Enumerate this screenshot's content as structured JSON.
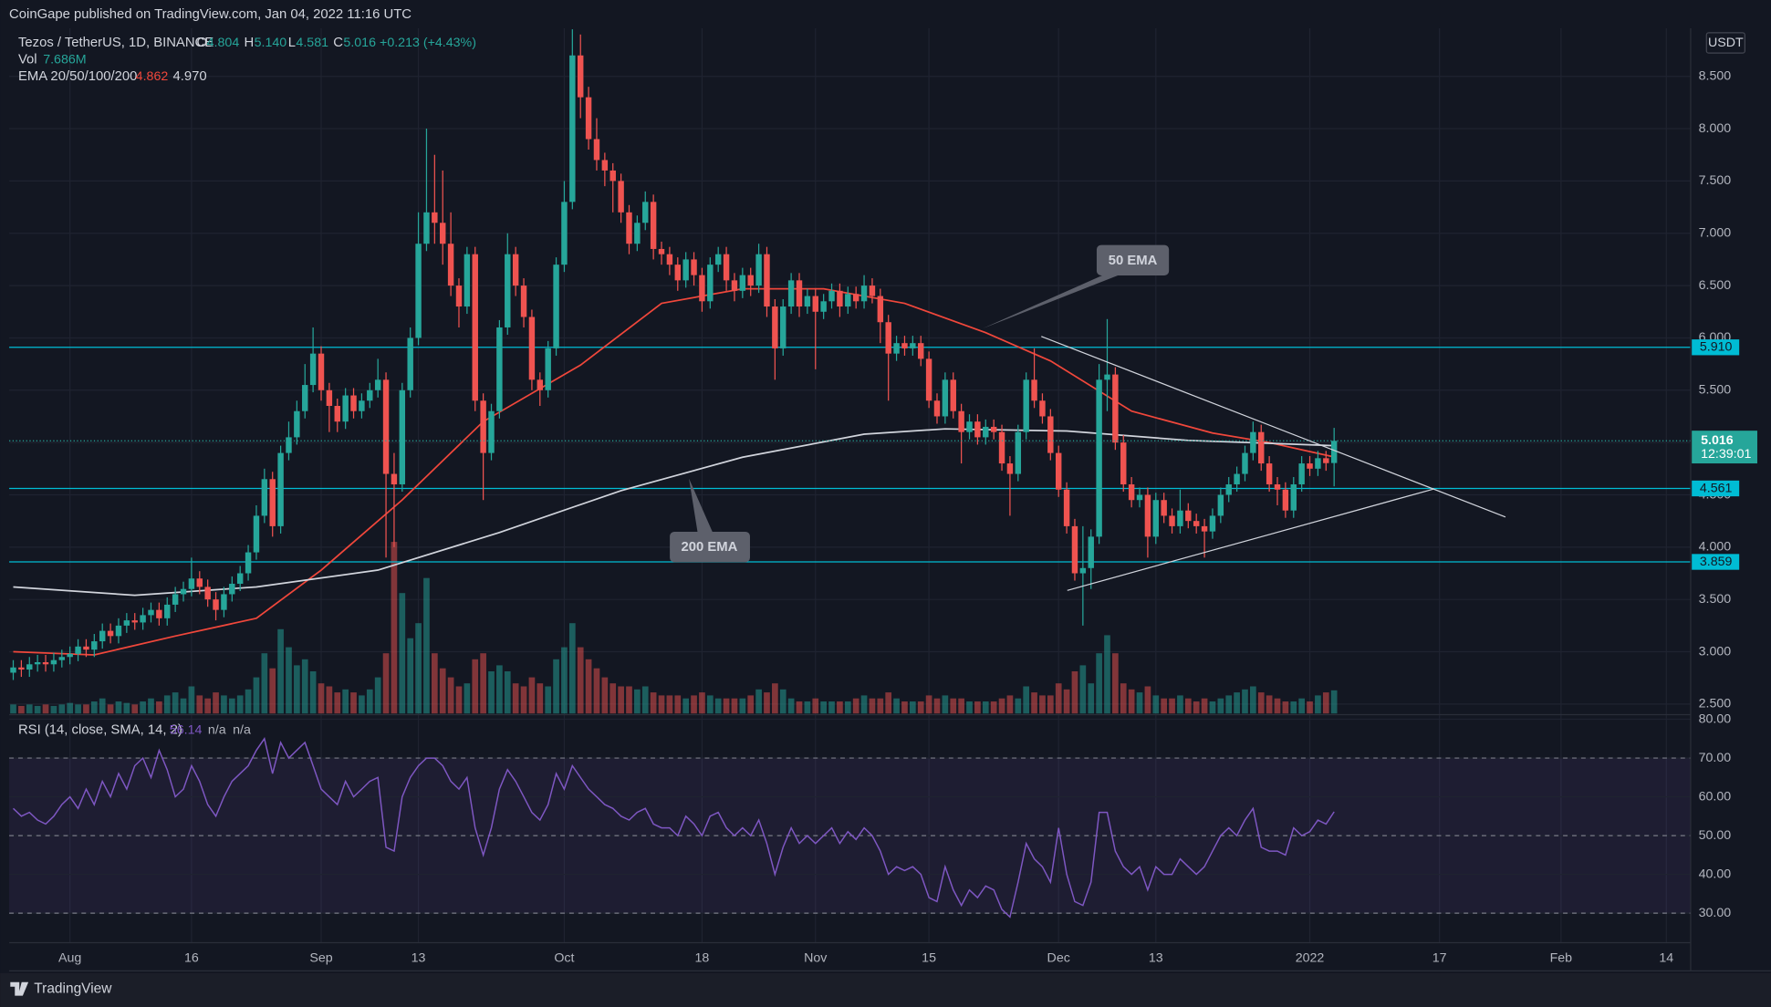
{
  "header": {
    "publisher": "CoinGape published on TradingView.com, Jan 04, 2022 11:16 UTC"
  },
  "footer": {
    "brand": "TradingView"
  },
  "chart_data": [
    {
      "type": "candlestick",
      "title": "Tezos / TetherUS, 1D, BINANCE",
      "ohlc_legend": [
        [
          "O",
          "4.804"
        ],
        [
          "H",
          "5.140"
        ],
        [
          "L",
          "4.581"
        ],
        [
          "C",
          "5.016"
        ]
      ],
      "change": "+0.213 (+4.43%)",
      "volume_legend": [
        "Vol",
        "7.686M"
      ],
      "ema_legend": [
        "EMA 20/50/100/200",
        "4.862",
        "4.970"
      ],
      "currency": "USDT",
      "countdown": "12:39:01",
      "up_color": "#26a69a",
      "down_color": "#ef5350",
      "open": [
        2.8,
        2.85,
        2.83,
        2.88,
        2.9,
        2.88,
        2.92,
        2.95,
        2.98,
        3.05,
        3.02,
        3.1,
        3.2,
        3.15,
        3.25,
        3.3,
        3.28,
        3.35,
        3.4,
        3.32,
        3.45,
        3.55,
        3.6,
        3.7,
        3.62,
        3.5,
        3.4,
        3.55,
        3.65,
        3.75,
        3.95,
        4.3,
        4.65,
        4.2,
        4.9,
        5.05,
        5.3,
        5.55,
        5.85,
        5.5,
        5.35,
        5.2,
        5.45,
        5.3,
        5.4,
        5.5,
        5.6,
        4.7,
        4.6,
        5.5,
        6.0,
        6.9,
        7.2,
        7.1,
        6.9,
        6.5,
        6.3,
        6.8,
        5.4,
        4.9,
        5.3,
        6.1,
        6.8,
        6.5,
        6.2,
        5.6,
        5.5,
        5.9,
        6.7,
        7.3,
        8.7,
        8.3,
        7.9,
        7.7,
        7.6,
        7.5,
        7.2,
        6.9,
        7.1,
        7.3,
        6.85,
        6.8,
        6.7,
        6.55,
        6.75,
        6.6,
        6.35,
        6.7,
        6.8,
        6.55,
        6.45,
        6.6,
        6.5,
        6.8,
        6.3,
        5.9,
        6.3,
        6.55,
        6.3,
        6.4,
        6.25,
        6.35,
        6.45,
        6.3,
        6.42,
        6.35,
        6.5,
        6.4,
        6.15,
        5.85,
        5.95,
        5.9,
        5.95,
        5.8,
        5.4,
        5.25,
        5.6,
        5.3,
        5.1,
        5.2,
        5.05,
        5.15,
        5.1,
        4.8,
        4.7,
        5.1,
        5.6,
        5.4,
        5.25,
        4.9,
        4.55,
        4.2,
        3.75,
        3.8,
        4.1,
        5.6,
        5.65,
        5.0,
        4.6,
        4.45,
        4.5,
        4.1,
        4.45,
        4.3,
        4.2,
        4.35,
        4.25,
        4.2,
        4.15,
        4.3,
        4.5,
        4.6,
        4.7,
        4.9,
        5.1,
        4.8,
        4.6,
        4.55,
        4.35,
        4.6,
        4.8,
        4.75,
        4.85,
        4.804
      ],
      "high": [
        2.92,
        2.92,
        2.95,
        2.97,
        2.97,
        2.99,
        3.02,
        3.05,
        3.12,
        3.12,
        3.17,
        3.27,
        3.27,
        3.32,
        3.37,
        3.37,
        3.42,
        3.47,
        3.47,
        3.52,
        3.62,
        3.67,
        3.9,
        3.77,
        3.69,
        3.57,
        3.62,
        3.72,
        3.82,
        4.02,
        4.4,
        4.75,
        4.72,
        4.97,
        5.2,
        5.4,
        5.75,
        6.1,
        5.92,
        5.57,
        5.42,
        5.52,
        5.52,
        5.47,
        5.57,
        5.8,
        5.67,
        4.9,
        5.57,
        6.1,
        7.2,
        8.0,
        7.75,
        7.6,
        7.2,
        6.57,
        6.87,
        6.87,
        5.47,
        5.37,
        6.17,
        7.0,
        6.87,
        6.57,
        6.27,
        5.67,
        5.97,
        6.77,
        7.5,
        8.95,
        8.9,
        8.4,
        8.1,
        7.77,
        7.67,
        7.57,
        7.27,
        7.17,
        7.4,
        7.37,
        6.92,
        6.87,
        6.77,
        6.82,
        6.82,
        6.67,
        6.77,
        6.87,
        6.87,
        6.62,
        6.67,
        6.67,
        6.9,
        6.87,
        6.37,
        6.37,
        6.62,
        6.62,
        6.47,
        6.47,
        6.42,
        6.52,
        6.52,
        6.49,
        6.49,
        6.6,
        6.57,
        6.47,
        6.22,
        6.02,
        6.02,
        6.02,
        6.02,
        5.87,
        5.47,
        5.67,
        5.67,
        5.37,
        5.27,
        5.27,
        5.22,
        5.22,
        5.17,
        4.87,
        5.17,
        5.67,
        5.9,
        5.47,
        5.32,
        4.97,
        4.62,
        4.27,
        4.2,
        4.17,
        5.75,
        6.18,
        5.72,
        5.07,
        4.67,
        4.57,
        4.57,
        4.52,
        4.52,
        4.37,
        4.55,
        4.42,
        4.32,
        4.27,
        4.37,
        4.57,
        4.67,
        4.77,
        4.97,
        5.2,
        5.17,
        4.87,
        4.67,
        4.62,
        4.67,
        4.87,
        4.87,
        4.92,
        4.92,
        5.14
      ],
      "low": [
        2.73,
        2.76,
        2.76,
        2.81,
        2.81,
        2.81,
        2.85,
        2.88,
        2.91,
        2.95,
        2.95,
        3.03,
        3.08,
        3.08,
        3.18,
        3.21,
        3.21,
        3.28,
        3.25,
        3.25,
        3.38,
        3.48,
        3.53,
        3.55,
        3.43,
        3.3,
        3.33,
        3.48,
        3.58,
        3.68,
        3.88,
        4.23,
        4.1,
        4.13,
        4.83,
        4.98,
        5.23,
        5.48,
        5.4,
        5.1,
        5.1,
        5.13,
        5.23,
        5.23,
        5.33,
        5.43,
        3.9,
        4.0,
        4.53,
        5.43,
        5.93,
        6.83,
        6.9,
        6.7,
        6.4,
        6.1,
        6.23,
        5.3,
        4.45,
        4.83,
        5.23,
        6.03,
        6.4,
        6.1,
        5.5,
        5.35,
        5.43,
        5.83,
        6.63,
        7.23,
        8.1,
        7.8,
        7.6,
        7.45,
        7.2,
        7.1,
        6.8,
        6.83,
        7.03,
        6.75,
        6.7,
        6.6,
        6.45,
        6.48,
        6.5,
        6.25,
        6.28,
        6.63,
        6.45,
        6.35,
        6.38,
        6.4,
        6.43,
        6.2,
        5.6,
        5.83,
        6.23,
        6.2,
        6.23,
        5.7,
        6.18,
        6.28,
        6.2,
        6.23,
        6.28,
        6.28,
        6.33,
        5.95,
        5.4,
        5.78,
        5.83,
        5.83,
        5.73,
        5.33,
        5.18,
        5.18,
        5.23,
        4.8,
        5.03,
        4.98,
        4.98,
        5.03,
        4.73,
        4.3,
        4.63,
        5.03,
        5.33,
        5.18,
        4.83,
        4.48,
        4.13,
        3.68,
        3.25,
        3.6,
        4.03,
        5.3,
        4.93,
        4.53,
        4.38,
        4.38,
        3.9,
        4.03,
        4.23,
        4.13,
        4.13,
        4.18,
        4.13,
        3.9,
        4.08,
        4.23,
        4.43,
        4.53,
        4.63,
        4.83,
        4.73,
        4.53,
        4.4,
        4.28,
        4.28,
        4.53,
        4.68,
        4.68,
        4.73,
        4.581
      ],
      "close": [
        2.85,
        2.83,
        2.88,
        2.9,
        2.88,
        2.92,
        2.95,
        2.98,
        3.05,
        3.02,
        3.1,
        3.2,
        3.15,
        3.25,
        3.3,
        3.28,
        3.35,
        3.4,
        3.32,
        3.45,
        3.55,
        3.6,
        3.7,
        3.62,
        3.5,
        3.4,
        3.55,
        3.65,
        3.75,
        3.95,
        4.3,
        4.65,
        4.2,
        4.9,
        5.05,
        5.3,
        5.55,
        5.85,
        5.5,
        5.35,
        5.2,
        5.45,
        5.3,
        5.4,
        5.5,
        5.6,
        4.7,
        4.6,
        5.5,
        6.0,
        6.9,
        7.2,
        7.1,
        6.9,
        6.5,
        6.3,
        6.8,
        5.4,
        4.9,
        5.3,
        6.1,
        6.8,
        6.5,
        6.2,
        5.6,
        5.5,
        5.9,
        6.7,
        7.3,
        8.7,
        8.3,
        7.9,
        7.7,
        7.6,
        7.5,
        7.2,
        6.9,
        7.1,
        7.3,
        6.85,
        6.8,
        6.7,
        6.55,
        6.75,
        6.6,
        6.35,
        6.7,
        6.8,
        6.55,
        6.45,
        6.6,
        6.5,
        6.8,
        6.3,
        5.9,
        6.3,
        6.55,
        6.3,
        6.4,
        6.25,
        6.35,
        6.45,
        6.3,
        6.42,
        6.35,
        6.5,
        6.4,
        6.15,
        5.85,
        5.95,
        5.9,
        5.95,
        5.8,
        5.4,
        5.25,
        5.6,
        5.3,
        5.1,
        5.2,
        5.05,
        5.15,
        5.1,
        4.8,
        4.7,
        5.1,
        5.6,
        5.4,
        5.25,
        4.9,
        4.55,
        4.2,
        3.75,
        3.8,
        4.1,
        5.6,
        5.65,
        5.0,
        4.6,
        4.45,
        4.5,
        4.1,
        4.45,
        4.3,
        4.2,
        4.35,
        4.25,
        4.2,
        4.15,
        4.3,
        4.5,
        4.6,
        4.7,
        4.9,
        5.1,
        4.8,
        4.6,
        4.55,
        4.35,
        4.6,
        4.8,
        4.75,
        4.85,
        4.803,
        5.016
      ],
      "volume": [
        3,
        2.5,
        3,
        2.5,
        3,
        2.5,
        3,
        3.5,
        3,
        3,
        4,
        5,
        3,
        4,
        3.5,
        3,
        4,
        5,
        4,
        6,
        7,
        5,
        9,
        6,
        5,
        7,
        6,
        5,
        6,
        8,
        12,
        20,
        15,
        28,
        22,
        16,
        18,
        14,
        10,
        9,
        7,
        8,
        7,
        6,
        8,
        12,
        20,
        57,
        40,
        25,
        30,
        45,
        20,
        15,
        12,
        9,
        10,
        18,
        20,
        14,
        16,
        14,
        10,
        9,
        12,
        10,
        9,
        18,
        22,
        30,
        22,
        18,
        15,
        12,
        10,
        9,
        9,
        8,
        9,
        7,
        6,
        6,
        6,
        5,
        6,
        7,
        6,
        5,
        5,
        5,
        5,
        6,
        8,
        7,
        10,
        8,
        5,
        4,
        4,
        5,
        4,
        4,
        4,
        4,
        5,
        6,
        5,
        5,
        7,
        5,
        4,
        4,
        4,
        6,
        5,
        6,
        5,
        5,
        4,
        4,
        4,
        4,
        5,
        6,
        5,
        9,
        7,
        6,
        6,
        10,
        8,
        14,
        16,
        10,
        20,
        26,
        20,
        10,
        8,
        7,
        9,
        6,
        5,
        5,
        6,
        5,
        4,
        5,
        4,
        5,
        6,
        7,
        8,
        9,
        7,
        6,
        5,
        4,
        4,
        5,
        4,
        6,
        7,
        7.686
      ],
      "lines": [
        {
          "label": "50 EMA",
          "color": "#f0473b",
          "x": [
            0,
            10,
            20,
            30,
            38,
            48,
            58,
            70,
            80,
            90,
            100,
            110,
            120,
            128,
            138,
            148,
            155,
            163
          ],
          "values": [
            3.0,
            2.97,
            3.15,
            3.32,
            3.78,
            4.45,
            5.2,
            5.74,
            6.33,
            6.47,
            6.47,
            6.33,
            6.05,
            5.78,
            5.3,
            5.09,
            5.0,
            4.862
          ]
        },
        {
          "label": "200 EMA",
          "color": "#d1d4dc",
          "x": [
            0,
            15,
            30,
            45,
            60,
            75,
            90,
            105,
            115,
            130,
            145,
            163
          ],
          "values": [
            3.62,
            3.54,
            3.62,
            3.78,
            4.14,
            4.54,
            4.86,
            5.08,
            5.13,
            5.11,
            5.02,
            4.97
          ]
        }
      ],
      "levels": [
        {
          "value": 5.91,
          "label": "5.910"
        },
        {
          "value": 4.561,
          "label": "4.561"
        },
        {
          "value": 3.859,
          "label": "3.859"
        }
      ],
      "level_color": "#00bcd4",
      "xlim": [
        -0.5,
        207
      ],
      "xticks": [
        {
          "value": 7,
          "label": "Aug"
        },
        {
          "value": 22,
          "label": "16"
        },
        {
          "value": 38,
          "label": "Sep"
        },
        {
          "value": 50,
          "label": "13"
        },
        {
          "value": 68,
          "label": "Oct"
        },
        {
          "value": 85,
          "label": "18"
        },
        {
          "value": 99,
          "label": "Nov"
        },
        {
          "value": 113,
          "label": "15"
        },
        {
          "value": 129,
          "label": "Dec"
        },
        {
          "value": 141,
          "label": "13"
        },
        {
          "value": 160,
          "label": "2022"
        },
        {
          "value": 176,
          "label": "17"
        },
        {
          "value": 191,
          "label": "Feb"
        },
        {
          "value": 204,
          "label": "14"
        }
      ],
      "ylim": [
        2.41,
        8.96
      ],
      "yticks": [
        {
          "value": 2.5,
          "label": "2.500"
        },
        {
          "value": 3,
          "label": "3.000"
        },
        {
          "value": 3.5,
          "label": "3.500"
        },
        {
          "value": 4,
          "label": "4.000"
        },
        {
          "value": 4.5,
          "label": "4.500"
        },
        {
          "value": 5,
          "label": "5.000"
        },
        {
          "value": 5.5,
          "label": "5.500"
        },
        {
          "value": 6,
          "label": "6.000"
        },
        {
          "value": 6.5,
          "label": "6.500"
        },
        {
          "value": 7,
          "label": "7.000"
        },
        {
          "value": 7.5,
          "label": "7.500"
        },
        {
          "value": 8,
          "label": "8.000"
        },
        {
          "value": 8.5,
          "label": "8.500"
        }
      ],
      "grid": true
    },
    {
      "type": "line",
      "title": "RSI (14, close, SMA, 14, 2)",
      "legend_values": [
        "56.14",
        "n/a",
        "n/a"
      ],
      "series": [
        {
          "color": "#7e57c2",
          "values": [
            57,
            55,
            56,
            54,
            53,
            55,
            58,
            60,
            57,
            62,
            58,
            64,
            60,
            66,
            62,
            68,
            70,
            65,
            72,
            67,
            60,
            62,
            68,
            64,
            58,
            55,
            60,
            64,
            66,
            68,
            72,
            75,
            66,
            74,
            70,
            72,
            74,
            68,
            62,
            60,
            58,
            64,
            60,
            62,
            64,
            65,
            47,
            46,
            60,
            65,
            68,
            70,
            70,
            68,
            64,
            62,
            65,
            52,
            45,
            52,
            62,
            67,
            64,
            60,
            56,
            54,
            58,
            66,
            62,
            68,
            65,
            62,
            60,
            58,
            57,
            55,
            54,
            56,
            57,
            53,
            52,
            52,
            50,
            55,
            53,
            50,
            55,
            56,
            52,
            50,
            52,
            50,
            54,
            48,
            40,
            47,
            52,
            48,
            50,
            48,
            50,
            52,
            48,
            51,
            49,
            52,
            50,
            46,
            40,
            42,
            41,
            42,
            40,
            34,
            33,
            42,
            36,
            32,
            36,
            34,
            37,
            36,
            31,
            29,
            38,
            48,
            44,
            42,
            38,
            52,
            40,
            33,
            32,
            38,
            56,
            56,
            46,
            42,
            40,
            42,
            36,
            42,
            40,
            40,
            44,
            42,
            40,
            42,
            46,
            50,
            52,
            50,
            54,
            57,
            47,
            46,
            46,
            45,
            52,
            50,
            51,
            54,
            53,
            56.14
          ]
        }
      ],
      "band": [
        30,
        70
      ],
      "band_color": "#7e57c2",
      "hlines": [
        30,
        50,
        70
      ],
      "xlim": [
        -0.5,
        207
      ],
      "ylim": [
        22.4,
        81.2
      ],
      "yticks": [
        {
          "value": 30,
          "label": "30.00"
        },
        {
          "value": 40,
          "label": "40.00"
        },
        {
          "value": 50,
          "label": "50.00"
        },
        {
          "value": 60,
          "label": "60.00"
        },
        {
          "value": 70,
          "label": "70.00"
        },
        {
          "value": 80,
          "label": "80.00"
        }
      ],
      "grid": true
    }
  ]
}
